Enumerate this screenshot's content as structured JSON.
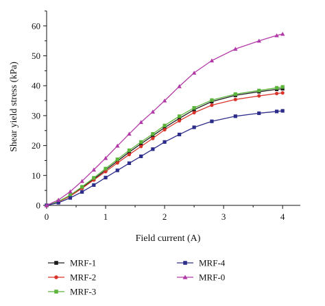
{
  "chart_data": {
    "type": "line",
    "xlabel": "Field current (A)",
    "ylabel": "Shear yield stress (kPa)",
    "xlim": [
      0,
      4.3
    ],
    "ylim": [
      0,
      65
    ],
    "xticks": [
      0,
      1,
      2,
      3,
      4
    ],
    "yticks": [
      0,
      10,
      20,
      30,
      40,
      50,
      60
    ],
    "grid": false,
    "legend_position": "bottom",
    "series": [
      {
        "name": "MRF-1",
        "color": "#1a1a1a",
        "marker": "square",
        "x": [
          0,
          0.2,
          0.4,
          0.6,
          0.8,
          1.0,
          1.2,
          1.4,
          1.6,
          1.8,
          2.0,
          2.25,
          2.5,
          2.8,
          3.2,
          3.6,
          3.9,
          4.0
        ],
        "y": [
          0,
          1.2,
          3.2,
          5.9,
          8.8,
          11.8,
          14.8,
          17.8,
          20.6,
          23.3,
          26.0,
          29.1,
          32.0,
          34.7,
          36.8,
          38.0,
          38.8,
          39.0
        ]
      },
      {
        "name": "MRF-2",
        "color": "#d9342b",
        "marker": "circle",
        "x": [
          0,
          0.2,
          0.4,
          0.6,
          0.8,
          1.0,
          1.2,
          1.4,
          1.6,
          1.8,
          2.0,
          2.25,
          2.5,
          2.8,
          3.2,
          3.6,
          3.9,
          4.0
        ],
        "y": [
          0,
          1.2,
          3.1,
          5.7,
          8.5,
          11.3,
          14.2,
          17.0,
          19.7,
          22.4,
          25.3,
          28.3,
          31.0,
          33.5,
          35.4,
          36.6,
          37.4,
          37.6
        ]
      },
      {
        "name": "MRF-3",
        "color": "#5cb53b",
        "marker": "square",
        "x": [
          0,
          0.2,
          0.4,
          0.6,
          0.8,
          1.0,
          1.2,
          1.4,
          1.6,
          1.8,
          2.0,
          2.25,
          2.5,
          2.8,
          3.2,
          3.6,
          3.9,
          4.0
        ],
        "y": [
          0,
          1.3,
          3.4,
          6.2,
          9.2,
          12.3,
          15.4,
          18.4,
          21.2,
          23.9,
          26.7,
          29.8,
          32.6,
          35.2,
          37.2,
          38.4,
          39.3,
          39.6
        ]
      },
      {
        "name": "MRF-4",
        "color": "#2c2c8a",
        "marker": "square",
        "x": [
          0,
          0.2,
          0.4,
          0.6,
          0.8,
          1.0,
          1.2,
          1.4,
          1.6,
          1.8,
          2.0,
          2.25,
          2.5,
          2.8,
          3.2,
          3.6,
          3.9,
          4.0
        ],
        "y": [
          0,
          0.9,
          2.5,
          4.5,
          6.8,
          9.3,
          11.7,
          14.1,
          16.4,
          18.8,
          21.2,
          23.7,
          26.1,
          28.1,
          29.8,
          30.8,
          31.4,
          31.6
        ]
      },
      {
        "name": "MRF-0",
        "color": "#b23aa8",
        "marker": "triangle",
        "x": [
          0,
          0.2,
          0.4,
          0.6,
          0.8,
          1.0,
          1.2,
          1.4,
          1.6,
          1.8,
          2.0,
          2.25,
          2.5,
          2.8,
          3.2,
          3.6,
          3.9,
          4.0
        ],
        "y": [
          0,
          1.8,
          4.6,
          8.1,
          11.9,
          15.8,
          19.9,
          23.9,
          27.8,
          31.3,
          35.0,
          39.8,
          44.3,
          48.4,
          52.3,
          55.0,
          56.8,
          57.3
        ]
      }
    ]
  }
}
